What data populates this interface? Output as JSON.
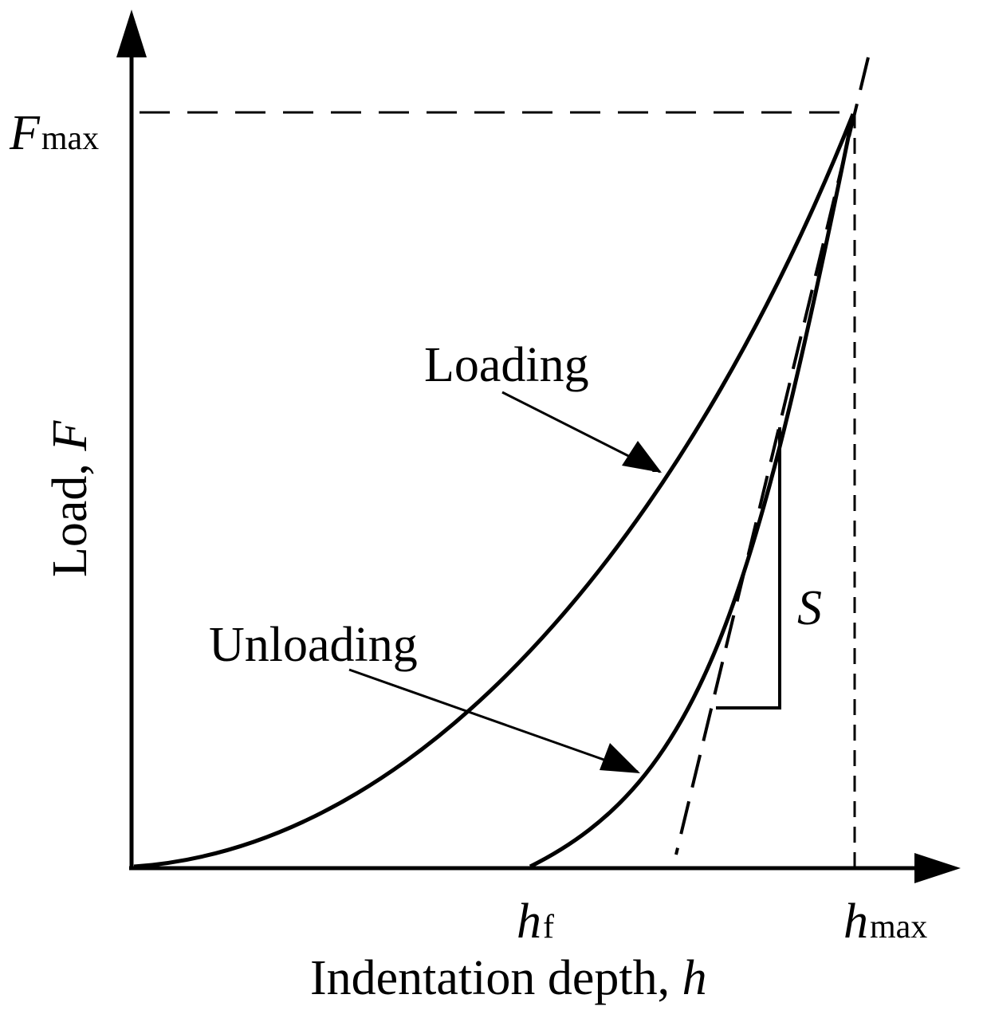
{
  "axes": {
    "y_label_text": "Load, ",
    "y_label_var": "F",
    "x_label_text": "Indentation depth, ",
    "x_label_var": "h"
  },
  "ticks": {
    "fmax_var": "F",
    "fmax_sub": "max",
    "hf_var": "h",
    "hf_sub": "f",
    "hmax_var": "h",
    "hmax_sub": "max"
  },
  "annotations": {
    "loading": "Loading",
    "unloading": "Unloading",
    "stiffness": "S"
  }
}
